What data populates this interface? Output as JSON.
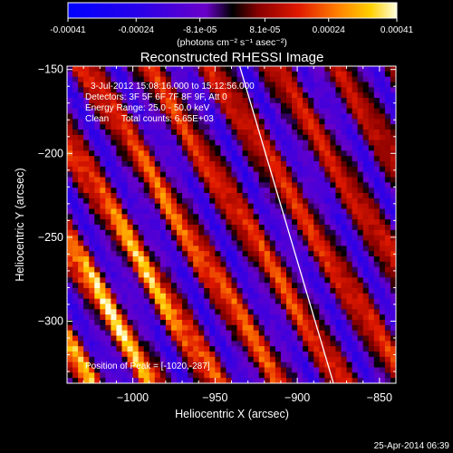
{
  "colorbar": {
    "tick_labels": [
      "-0.00041",
      "-0.00024",
      "-8.1e-05",
      "8.1e-05",
      "0.00024",
      "0.00041"
    ],
    "tick_values": [
      -0.00041,
      -0.00024,
      -8.1e-05,
      8.1e-05,
      0.00024,
      0.00041
    ],
    "range": [
      -0.00041,
      0.00041
    ],
    "units_label": "(photons cm⁻² s⁻¹ asec⁻²)"
  },
  "chart_data": {
    "type": "heatmap",
    "title": "Reconstructed RHESSI Image",
    "xlabel": "Heliocentric X (arcsec)",
    "ylabel": "Heliocentric Y (arcsec)",
    "xlim": [
      -1040,
      -840
    ],
    "ylim": [
      -337,
      -148
    ],
    "xticks": [
      -1000,
      -950,
      -900,
      -850
    ],
    "xtick_labels": [
      "−1000",
      "−950",
      "−900",
      "−850"
    ],
    "yticks": [
      -150,
      -200,
      -250,
      -300
    ],
    "ytick_labels": [
      "−150",
      "−200",
      "−250",
      "−300"
    ],
    "limb_line": {
      "x": [
        -935,
        -878
      ],
      "y": [
        -148,
        -337
      ]
    },
    "annotations": [
      "3-Jul-2012 15:08:16.000 to 15:12:56.000",
      "Detectors: 3F 5F 6F 7F 8F 9F, Att 0",
      "Energy Range: 25.0 - 50.0 keV",
      "Clean     Total counts: 6.65E+03"
    ],
    "peak_label": "Position of Peak = [-1020,-287]",
    "peak": {
      "x": -1020,
      "y": -287
    }
  },
  "footer": {
    "timestamp": "25-Apr-2014 06:39"
  }
}
